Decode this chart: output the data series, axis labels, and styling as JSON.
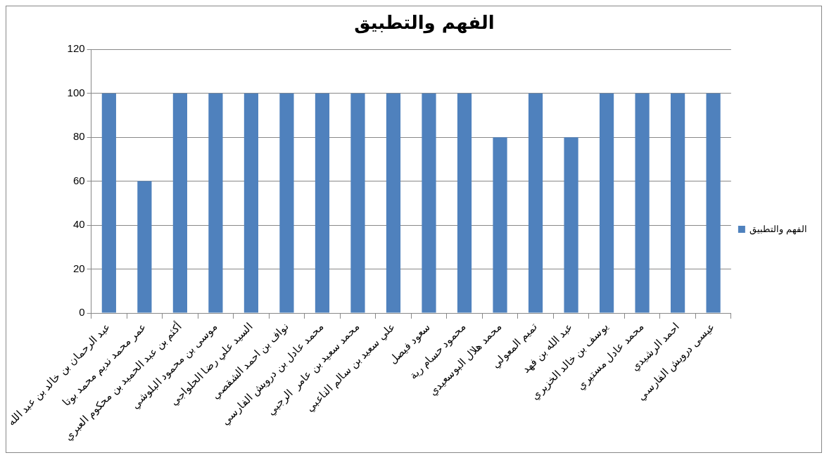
{
  "chart_data": {
    "type": "bar",
    "title": "الفهم والتطبيق",
    "categories": [
      "عبد الرحمان بن خالد بن عبد الله",
      "عمر محمد نديم محمد بوتا",
      "أكثم بن عبد الحميد بن محكوم العبري",
      "موسى بن محمود البلوشي",
      "السيد علي رضا الحلواجي",
      "نواف بن احمد الشقصي",
      "محمد عادل بن درويش الفارسي",
      "محمد سعيد بن عامر  الرجبي",
      "علي سعيد بن سالم الناعبي",
      "سعود فيصل",
      "محمود حسام رية",
      "محمد هلال البوسعيدي",
      "تميم المعولي",
      "عبد الله بن فهد",
      "يوسف بن خالد الخزيري",
      "محمد عادل مستيري",
      "احمد الرشيدي",
      "عيسى درويش الفارسي"
    ],
    "series": [
      {
        "name": "الفهم والتطبيق",
        "color": "#4f81bd",
        "values": [
          100,
          60,
          100,
          100,
          100,
          100,
          100,
          100,
          100,
          100,
          100,
          80,
          100,
          80,
          100,
          100,
          100,
          100
        ]
      }
    ],
    "ylim": [
      0,
      120
    ],
    "yticks": [
      0,
      20,
      40,
      60,
      80,
      100,
      120
    ],
    "grid": "y",
    "legend": "right"
  }
}
